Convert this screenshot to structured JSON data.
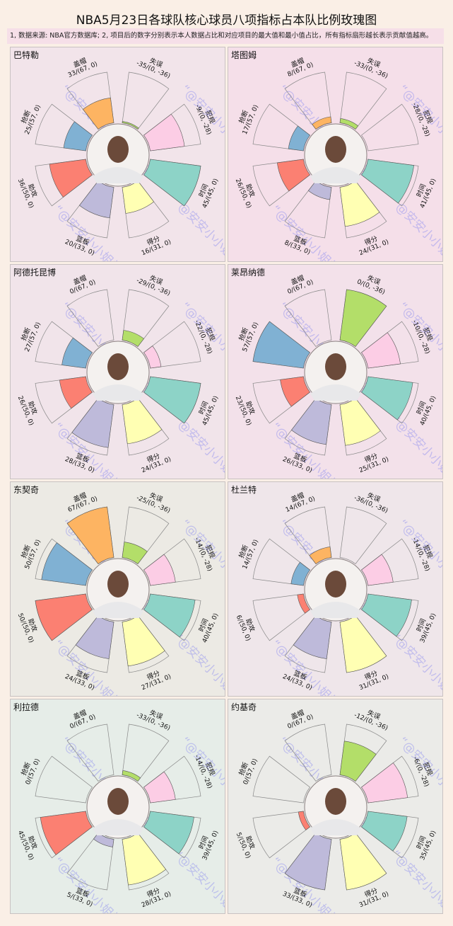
{
  "title": "NBA5月23日各球队核心球员八项指标占本队比例玫瑰图",
  "note": "1, 数据来源: NBA官方数据库; 2, 项目后的数字分别表示本人数据占比和对应项目的最大值和最小值占比，所有指标扇形越长表示贡献值越高。",
  "watermark": "“@安安小小姐姐” 原创",
  "colors": {
    "盖帽": "#fdb462",
    "失误": "#b3de69",
    "犯规": "#fccde5",
    "时间": "#8dd3c7",
    "得分": "#ffffb3",
    "篮板": "#bebada",
    "助攻": "#fb8072",
    "抢断": "#80b1d3"
  },
  "chart_data": {
    "type": "rose",
    "title": "NBA5月23日各球队核心球员八项指标占本队比例玫瑰图",
    "metrics": [
      {
        "name": "盖帽",
        "range": "(67,0)",
        "max": 67,
        "min": 0
      },
      {
        "name": "失误",
        "range": "(0,-36)",
        "max": 0,
        "min": -36
      },
      {
        "name": "犯规",
        "range": "(0,-28)",
        "max": 0,
        "min": -28
      },
      {
        "name": "时间",
        "range": "(45,0)",
        "max": 45,
        "min": 0
      },
      {
        "name": "得分",
        "range": "(31,0)",
        "max": 31,
        "min": 0
      },
      {
        "name": "篮板",
        "range": "(33,0)",
        "max": 33,
        "min": 0
      },
      {
        "name": "助攻",
        "range": "(50,0)",
        "max": 50,
        "min": 0
      },
      {
        "name": "抢断",
        "range": "(57,0)",
        "max": 57,
        "min": 0
      }
    ],
    "players": [
      {
        "name": "巴特勒",
        "bg": "#f2e4ea",
        "values": {
          "盖帽": 33,
          "失误": -35,
          "犯规": -9,
          "时间": 45,
          "得分": 16,
          "篮板": 20,
          "助攻": 36,
          "抢断": 25
        }
      },
      {
        "name": "塔图姆",
        "bg": "#f5dfe9",
        "values": {
          "盖帽": 8,
          "失误": -33,
          "犯规": -28,
          "时间": 41,
          "得分": 24,
          "篮板": 8,
          "助攻": 26,
          "抢断": 17
        }
      },
      {
        "name": "阿德托昆博",
        "bg": "#f1e4ea",
        "values": {
          "盖帽": 0,
          "失误": -29,
          "犯规": -22,
          "时间": 45,
          "得分": 24,
          "篮板": 28,
          "助攻": 26,
          "抢断": 27
        }
      },
      {
        "name": "莱昂纳德",
        "bg": "#f3e1ea",
        "values": {
          "盖帽": 0,
          "失误": 0,
          "犯规": -10,
          "时间": 40,
          "得分": 25,
          "篮板": 26,
          "助攻": 23,
          "抢断": 57
        }
      },
      {
        "name": "东契奇",
        "bg": "#eceae4",
        "values": {
          "盖帽": 67,
          "失误": -25,
          "犯规": -14,
          "时间": 40,
          "得分": 27,
          "篮板": 24,
          "助攻": 50,
          "抢断": 50
        }
      },
      {
        "name": "杜兰特",
        "bg": "#efe6ea",
        "values": {
          "盖帽": 14,
          "失误": -36,
          "犯规": -14,
          "时间": 39,
          "得分": 31,
          "篮板": 24,
          "助攻": 6,
          "抢断": 14
        }
      },
      {
        "name": "利拉德",
        "bg": "#e6ede8",
        "values": {
          "盖帽": 0,
          "失误": -33,
          "犯规": -14,
          "时间": 39,
          "得分": 28,
          "篮板": 5,
          "助攻": 45,
          "抢断": 0
        }
      },
      {
        "name": "约基奇",
        "bg": "#ebebe8",
        "values": {
          "盖帽": 0,
          "失误": -12,
          "犯规": -6,
          "时间": 35,
          "得分": 31,
          "篮板": 33,
          "助攻": 5,
          "抢断": 0
        }
      }
    ]
  }
}
